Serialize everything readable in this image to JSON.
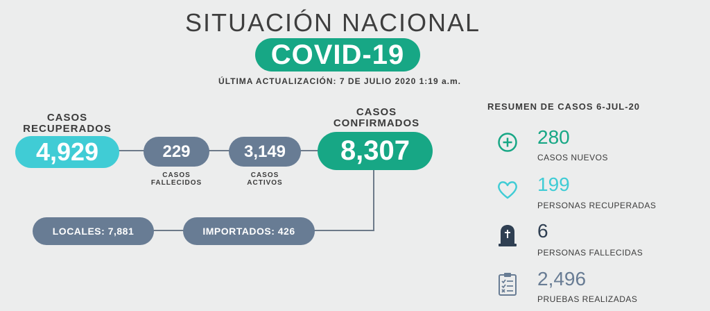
{
  "header": {
    "title": "SITUACIÓN NACIONAL",
    "badge": "COVID-19",
    "updated": "ÚLTIMA ACTUALIZACIÓN: 7 DE JULIO 2020 1:19 a.m."
  },
  "flow": {
    "recovered": {
      "label": "CASOS RECUPERADOS",
      "value": "4,929"
    },
    "deaths": {
      "label": "CASOS FALLECIDOS",
      "value": "229"
    },
    "active": {
      "label": "CASOS ACTIVOS",
      "value": "3,149"
    },
    "confirmed": {
      "label": "CASOS CONFIRMADOS",
      "value": "8,307"
    },
    "local": "LOCALES: 7,881",
    "imported": "IMPORTADOS: 426"
  },
  "summary": {
    "heading": "RESUMEN DE CASOS 6-JUL-20",
    "items": [
      {
        "icon": "plus-circle-icon",
        "value": "280",
        "label": "CASOS NUEVOS",
        "color": "#17a785"
      },
      {
        "icon": "heart-icon",
        "value": "199",
        "label": "PERSONAS RECUPERADAS",
        "color": "#40ccd5"
      },
      {
        "icon": "tombstone-icon",
        "value": "6",
        "label": "PERSONAS FALLECIDAS",
        "color": "#2f3f52"
      },
      {
        "icon": "clipboard-checklist-icon",
        "value": "2,496",
        "label": "PRUEBAS REALIZADAS",
        "color": "#687c94"
      }
    ]
  }
}
